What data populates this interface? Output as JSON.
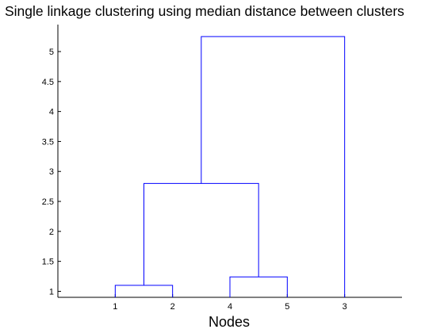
{
  "chart_data": {
    "type": "dendrogram",
    "title": "Single linkage clustering using median distance between clusters",
    "xlabel": "Nodes",
    "ylabel": "",
    "leaf_order": [
      "1",
      "2",
      "4",
      "5",
      "3"
    ],
    "links": [
      {
        "left": "1",
        "right": "2",
        "height": 1.1
      },
      {
        "left": "4",
        "right": "5",
        "height": 1.24
      },
      {
        "left": "(1,2)",
        "right": "(4,5)",
        "height": 2.8
      },
      {
        "left": "(1,2,4,5)",
        "right": "3",
        "height": 5.25
      }
    ],
    "ylim": [
      0.9,
      5.45
    ],
    "yticks": [
      "1",
      "1.5",
      "2",
      "2.5",
      "3",
      "3.5",
      "4",
      "4.5",
      "5"
    ],
    "link_color": "#0000ff",
    "grid": false
  }
}
